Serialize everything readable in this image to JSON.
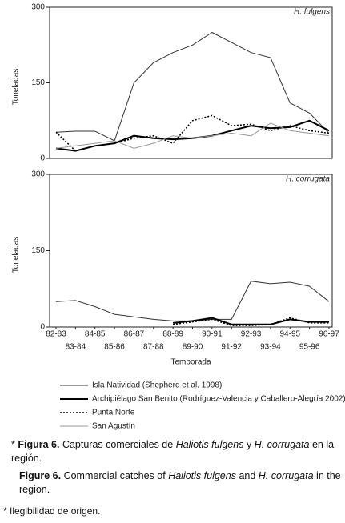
{
  "chart_data": [
    {
      "type": "line",
      "annotation": "H. fulgens",
      "y_label": "Toneladas",
      "categories": [
        "82-83",
        "83-84",
        "84-85",
        "85-86",
        "86-87",
        "87-88",
        "88-89",
        "89-90",
        "90-91",
        "91-92",
        "92-93",
        "93-94",
        "94-95",
        "95-96",
        "96-97"
      ],
      "ylim": [
        0,
        300
      ],
      "yticks": [
        0,
        150,
        300
      ],
      "series": [
        {
          "name": "Isla Natividad (Shepherd et al. 1998)",
          "color": "#333333",
          "width": 1,
          "dashed": false,
          "values": [
            52,
            54,
            54,
            35,
            150,
            190,
            210,
            225,
            250,
            230,
            210,
            200,
            110,
            90,
            50
          ]
        },
        {
          "name": "Archipiélago San Benito (Rodríguez-Valencia y Caballero-Alegría 2002)",
          "color": "#000000",
          "width": 2,
          "dashed": false,
          "values": [
            20,
            15,
            25,
            30,
            45,
            40,
            38,
            40,
            45,
            55,
            65,
            60,
            62,
            75,
            55
          ]
        },
        {
          "name": "Punta Norte",
          "color": "#000000",
          "width": 1.5,
          "dashed": true,
          "values": [
            52,
            15,
            25,
            30,
            40,
            45,
            30,
            75,
            85,
            65,
            68,
            55,
            65,
            55,
            50
          ]
        },
        {
          "name": "San Agustín",
          "color": "#999999",
          "width": 1,
          "dashed": false,
          "values": [
            20,
            25,
            30,
            35,
            20,
            30,
            45,
            40,
            45,
            50,
            45,
            70,
            55,
            50,
            45
          ]
        }
      ]
    },
    {
      "type": "line",
      "annotation": "H. corrugata",
      "y_label": "Toneladas",
      "x_label": "Temporada",
      "categories": [
        "82-83",
        "83-84",
        "84-85",
        "85-86",
        "86-87",
        "87-88",
        "88-89",
        "89-90",
        "90-91",
        "91-92",
        "92-93",
        "93-94",
        "94-95",
        "95-96",
        "96-97"
      ],
      "ylim": [
        0,
        300
      ],
      "yticks": [
        0,
        150,
        300
      ],
      "series": [
        {
          "color": "#333333",
          "width": 1,
          "dashed": false,
          "values": [
            50,
            52,
            40,
            25,
            20,
            15,
            12,
            12,
            15,
            15,
            90,
            85,
            88,
            80,
            50
          ]
        },
        {
          "color": "#000000",
          "width": 2,
          "dashed": false,
          "values": [
            null,
            null,
            null,
            null,
            null,
            null,
            8,
            12,
            18,
            5,
            5,
            5,
            15,
            10,
            10
          ]
        },
        {
          "color": "#000000",
          "width": 1.5,
          "dashed": true,
          "values": [
            null,
            null,
            null,
            null,
            null,
            null,
            5,
            10,
            15,
            3,
            3,
            5,
            18,
            8,
            8
          ]
        }
      ]
    }
  ],
  "caption_es": [
    "*",
    "Figura 6.",
    "Capturas comerciales de",
    "Haliotis fulgens",
    "y",
    "H. corrugata",
    "en la región."
  ],
  "caption_en": [
    "Figure 6.",
    "Commercial catches of",
    "Haliotis fulgens",
    "and",
    "H. corrugata",
    "in the region."
  ],
  "footnote": "* Ilegibilidad de origen."
}
